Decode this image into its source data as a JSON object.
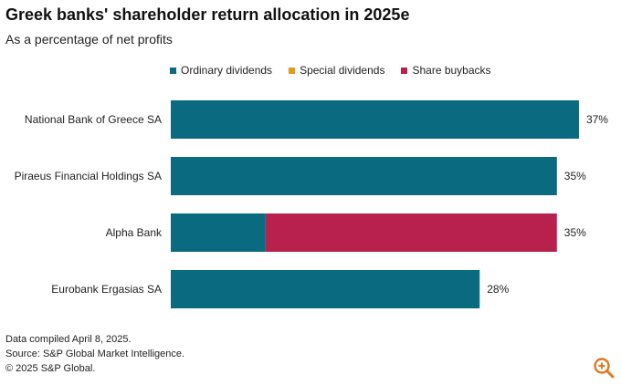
{
  "title": "Greek banks' shareholder return allocation in 2025e",
  "subtitle": "As a percentage of net profits",
  "colors": {
    "ordinary": "#0a6a80",
    "special": "#e09a1c",
    "buyback": "#b8204e",
    "zoom_icon": "#e0781e"
  },
  "legend": [
    {
      "label": "Ordinary dividends",
      "color_key": "ordinary"
    },
    {
      "label": "Special dividends",
      "color_key": "special"
    },
    {
      "label": "Share buybacks",
      "color_key": "buyback"
    }
  ],
  "chart_data": {
    "type": "bar",
    "orientation": "horizontal",
    "stacked": true,
    "categories": [
      "National Bank of Greece SA",
      "Piraeus Financial Holdings SA",
      "Alpha Bank",
      "Eurobank Ergasias SA"
    ],
    "series": [
      {
        "name": "Ordinary dividends",
        "values": [
          37,
          35,
          8.6,
          28
        ]
      },
      {
        "name": "Special dividends",
        "values": [
          0,
          0,
          0,
          0
        ]
      },
      {
        "name": "Share buybacks",
        "values": [
          0,
          0,
          26.4,
          0
        ]
      }
    ],
    "totals_labels": [
      "37%",
      "35%",
      "35%",
      "28%"
    ],
    "xlim": [
      0,
      40
    ],
    "grid": false,
    "legend_position": "top"
  },
  "footer": {
    "line1": "Data compiled April 8, 2025.",
    "line2": "Source: S&P Global Market Intelligence.",
    "line3": "© 2025 S&P Global."
  },
  "icons": {
    "zoom": "zoom-in-icon"
  }
}
